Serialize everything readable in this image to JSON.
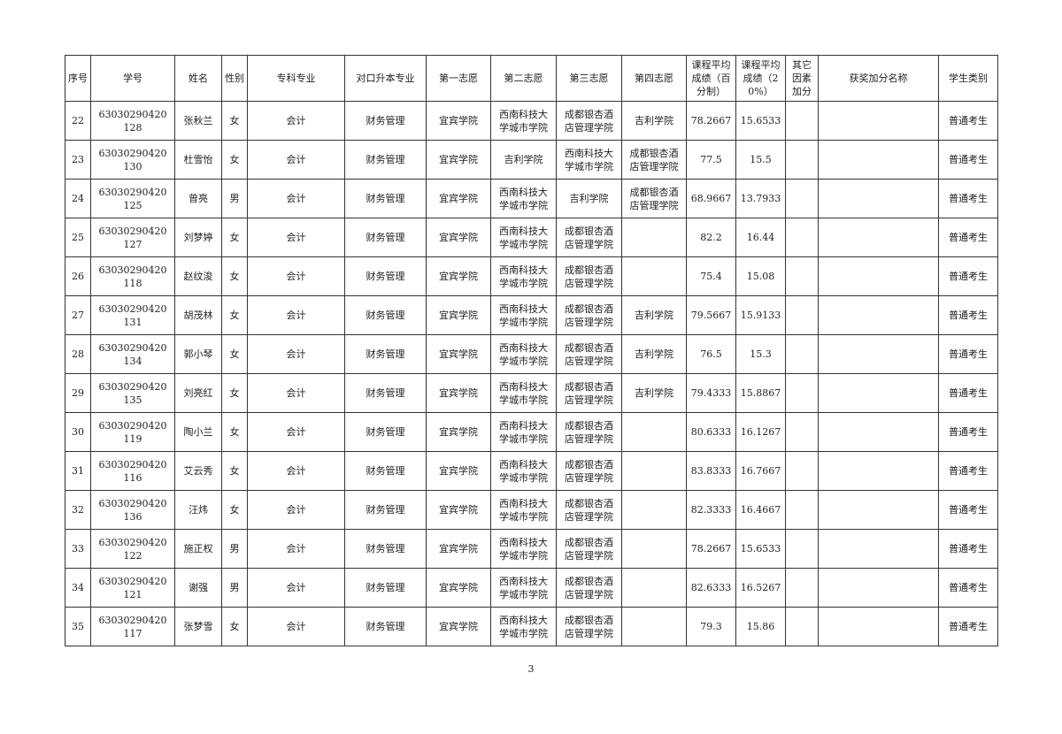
{
  "table": {
    "header": [
      "序号",
      "学号",
      "姓名",
      "性别",
      "专科专业",
      "对口升本专业",
      "第一志愿",
      "第二志愿",
      "第三志愿",
      "第四志愿",
      "课程平均成绩（百分制）",
      "课程平均成绩（20%）",
      "其它因素加分",
      "获奖加分名称",
      "学生类别"
    ],
    "rows": [
      [
        22,
        "63030290420128",
        "张秋兰",
        "女",
        "会计",
        "财务管理",
        "宜宾学院",
        "西南科技大学城市学院",
        "成都银杏酒店管理学院",
        "吉利学院",
        78.2667,
        15.6533,
        null,
        null,
        "普通考生"
      ],
      [
        23,
        "63030290420130",
        "杜雪怡",
        "女",
        "会计",
        "财务管理",
        "宜宾学院",
        "吉利学院",
        "西南科技大学城市学院",
        "成都银杏酒店管理学院",
        77.5,
        15.5,
        null,
        null,
        "普通考生"
      ],
      [
        24,
        "63030290420125",
        "曾亮",
        "男",
        "会计",
        "财务管理",
        "宜宾学院",
        "西南科技大学城市学院",
        "吉利学院",
        "成都银杏酒店管理学院",
        68.9667,
        13.7933,
        null,
        null,
        "普通考生"
      ],
      [
        25,
        "63030290420127",
        "刘梦婷",
        "女",
        "会计",
        "财务管理",
        "宜宾学院",
        "西南科技大学城市学院",
        "成都银杏酒店管理学院",
        null,
        82.2,
        16.44,
        null,
        null,
        "普通考生"
      ],
      [
        26,
        "63030290420118",
        "赵纹浚",
        "女",
        "会计",
        "财务管理",
        "宜宾学院",
        "西南科技大学城市学院",
        "成都银杏酒店管理学院",
        null,
        75.4,
        15.08,
        null,
        null,
        "普通考生"
      ],
      [
        27,
        "63030290420131",
        "胡茂林",
        "女",
        "会计",
        "财务管理",
        "宜宾学院",
        "西南科技大学城市学院",
        "成都银杏酒店管理学院",
        "吉利学院",
        79.5667,
        15.9133,
        null,
        null,
        "普通考生"
      ],
      [
        28,
        "63030290420134",
        "郭小琴",
        "女",
        "会计",
        "财务管理",
        "宜宾学院",
        "西南科技大学城市学院",
        "成都银杏酒店管理学院",
        "吉利学院",
        76.5,
        15.3,
        null,
        null,
        "普通考生"
      ],
      [
        29,
        "63030290420135",
        "刘亮红",
        "女",
        "会计",
        "财务管理",
        "宜宾学院",
        "西南科技大学城市学院",
        "成都银杏酒店管理学院",
        "吉利学院",
        79.4333,
        15.8867,
        null,
        null,
        "普通考生"
      ],
      [
        30,
        "63030290420119",
        "陶小兰",
        "女",
        "会计",
        "财务管理",
        "宜宾学院",
        "西南科技大学城市学院",
        "成都银杏酒店管理学院",
        null,
        80.6333,
        16.1267,
        null,
        null,
        "普通考生"
      ],
      [
        31,
        "63030290420116",
        "艾云秀",
        "女",
        "会计",
        "财务管理",
        "宜宾学院",
        "西南科技大学城市学院",
        "成都银杏酒店管理学院",
        null,
        83.8333,
        16.7667,
        null,
        null,
        "普通考生"
      ],
      [
        32,
        "63030290420136",
        "汪炜",
        "女",
        "会计",
        "财务管理",
        "宜宾学院",
        "西南科技大学城市学院",
        "成都银杏酒店管理学院",
        null,
        82.3333,
        16.4667,
        null,
        null,
        "普通考生"
      ],
      [
        33,
        "63030290420122",
        "施正权",
        "男",
        "会计",
        "财务管理",
        "宜宾学院",
        "西南科技大学城市学院",
        "成都银杏酒店管理学院",
        null,
        78.2667,
        15.6533,
        null,
        null,
        "普通考生"
      ],
      [
        34,
        "63030290420121",
        "谢强",
        "男",
        "会计",
        "财务管理",
        "宜宾学院",
        "西南科技大学城市学院",
        "成都银杏酒店管理学院",
        null,
        82.6333,
        16.5267,
        null,
        null,
        "普通考生"
      ],
      [
        35,
        "63030290420117",
        "张梦雪",
        "女",
        "会计",
        "财务管理",
        "宜宾学院",
        "西南科技大学城市学院",
        "成都银杏酒店管理学院",
        null,
        79.3,
        15.86,
        null,
        null,
        "普通考生"
      ]
    ]
  },
  "footer": {
    "page_number": "3"
  }
}
